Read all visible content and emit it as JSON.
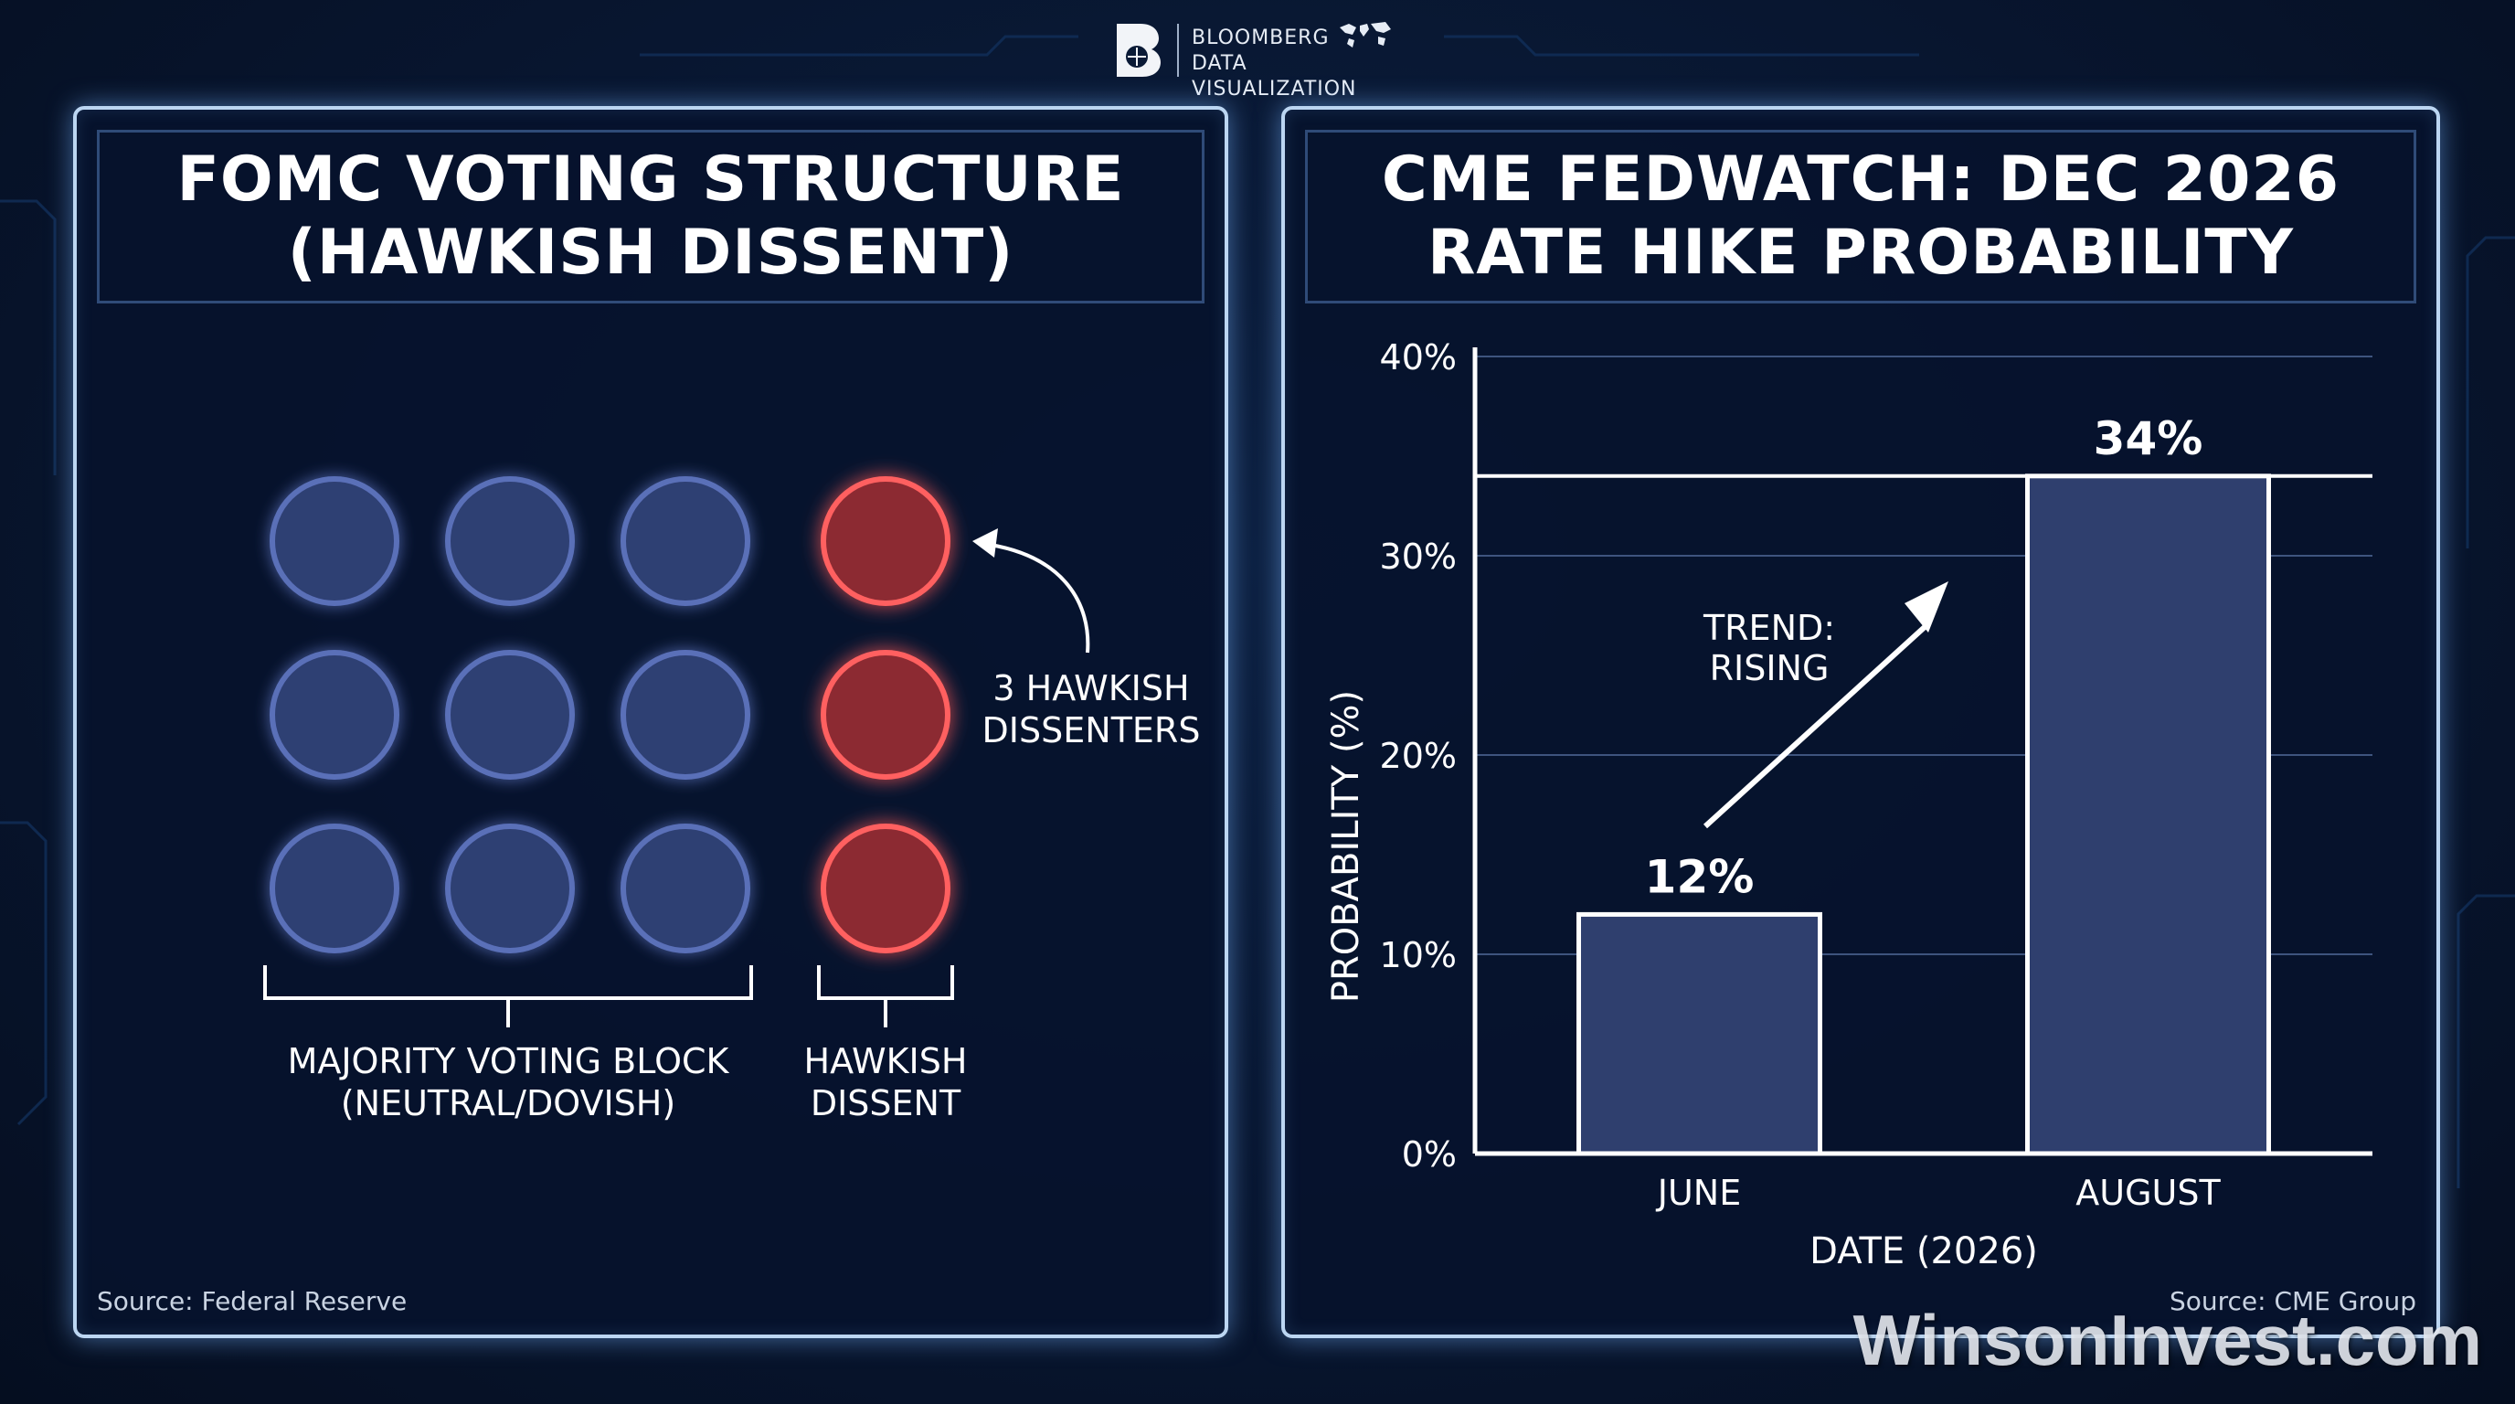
{
  "header": {
    "logo_line1": "BLOOMBERG",
    "logo_line2": "DATA VISUALIZATION",
    "logo_icon": "b-logo-icon",
    "globe_icon": "world-map-icon"
  },
  "left_panel": {
    "title_line1": "FOMC VOTING STRUCTURE",
    "title_line2": "(HAWKISH DISSENT)",
    "annotation_line1": "3 HAWKISH",
    "annotation_line2": "DISSENTERS",
    "majority_label_line1": "MAJORITY VOTING BLOCK",
    "majority_label_line2": "(NEUTRAL/DOVISH)",
    "dissent_label_line1": "HAWKISH",
    "dissent_label_line2": "DISSENT",
    "source": "Source: Federal Reserve",
    "colors": {
      "majority": "#2e3f73",
      "dissent": "#8c2a30",
      "majority_ring": "#5a6fb8",
      "dissent_ring": "#ff6060"
    }
  },
  "right_panel": {
    "title_line1": "CME FEDWATCH: DEC 2026",
    "title_line2": "RATE HIKE PROBABILITY",
    "source": "Source: CME Group",
    "trend_line1": "TREND:",
    "trend_line2": "RISING"
  },
  "watermark": "WinsonInvest.com",
  "chart_data": [
    {
      "type": "dot-matrix",
      "groups": [
        {
          "name": "MAJORITY VOTING BLOCK (NEUTRAL/DOVISH)",
          "count": 9,
          "color": "#2e3f73"
        },
        {
          "name": "HAWKISH DISSENT",
          "count": 3,
          "color": "#8c2a30"
        }
      ]
    },
    {
      "type": "bar",
      "categories": [
        "JUNE",
        "AUGUST"
      ],
      "values": [
        12,
        34
      ],
      "value_labels": [
        "12%",
        "34%"
      ],
      "xlabel": "DATE (2026)",
      "ylabel": "PROBABILITY (%)",
      "ylim": [
        0,
        40
      ],
      "yticks": [
        0,
        10,
        20,
        30,
        40
      ],
      "ytick_labels": [
        "0%",
        "10%",
        "20%",
        "30%",
        "40%"
      ],
      "grid": true,
      "reference_line": 34,
      "bar_color": "#2f3f6e"
    }
  ]
}
